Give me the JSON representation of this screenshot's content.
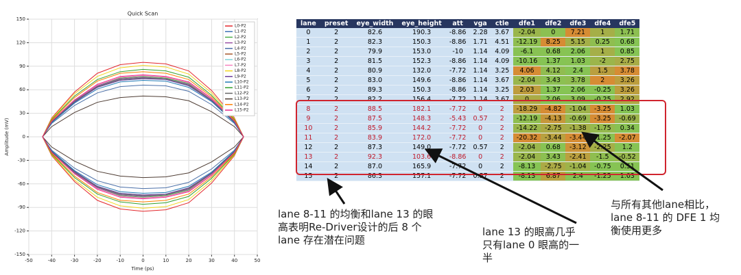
{
  "chart_data": {
    "type": "line",
    "title": "Quick Scan",
    "x_label": "Time (ps)",
    "y_label": "Amplitude (mV)",
    "x": [
      -44,
      -40,
      -30,
      -20,
      -10,
      0,
      10,
      20,
      30,
      40,
      44
    ],
    "xlim": [
      -50,
      50
    ],
    "xticks": [
      -50,
      -40,
      -30,
      -20,
      -10,
      0,
      10,
      20,
      30,
      40,
      50
    ],
    "ylim": [
      -150,
      150
    ],
    "yticks": [
      -150,
      -120,
      -90,
      -60,
      -30,
      0,
      30,
      60,
      90,
      120,
      150
    ],
    "grid": true,
    "legend": "upper right",
    "series": [
      {
        "name": "L0-P2",
        "color": "#e3262b",
        "values": [
          0,
          24,
          57,
          81,
          92,
          95,
          93,
          84,
          59,
          24,
          0
        ],
        "lower": [
          0,
          -24,
          -57,
          -81,
          -92,
          -95,
          -93,
          -84,
          -59,
          -24,
          0
        ]
      },
      {
        "name": "L1-P2",
        "color": "#3a6fb5",
        "values": [
          0,
          19,
          45,
          64,
          73,
          75,
          74,
          66,
          47,
          19,
          0
        ],
        "lower": [
          0,
          -19,
          -45,
          -64,
          -73,
          -75,
          -74,
          -66,
          -47,
          -19,
          0
        ]
      },
      {
        "name": "L2-P2",
        "color": "#4daf4a",
        "values": [
          0,
          19,
          46,
          65,
          75,
          77,
          75,
          68,
          48,
          19,
          0
        ],
        "lower": [
          0,
          -19,
          -46,
          -65,
          -75,
          -77,
          -75,
          -68,
          -48,
          -19,
          0
        ]
      },
      {
        "name": "L3-P2",
        "color": "#984ea3",
        "values": [
          0,
          19,
          46,
          65,
          74,
          76,
          74,
          67,
          47,
          19,
          0
        ],
        "lower": [
          0,
          -19,
          -46,
          -65,
          -74,
          -76,
          -74,
          -67,
          -47,
          -19,
          0
        ]
      },
      {
        "name": "L4-P2",
        "color": "#4a6fa8",
        "values": [
          0,
          17,
          40,
          56,
          64,
          66,
          65,
          58,
          41,
          17,
          0
        ],
        "lower": [
          0,
          -17,
          -40,
          -56,
          -64,
          -66,
          -65,
          -58,
          -41,
          -17,
          0
        ]
      },
      {
        "name": "L5-P2",
        "color": "#a65628",
        "values": [
          0,
          19,
          45,
          64,
          73,
          75,
          74,
          66,
          47,
          19,
          0
        ],
        "lower": [
          0,
          -19,
          -45,
          -64,
          -73,
          -75,
          -74,
          -66,
          -47,
          -19,
          0
        ]
      },
      {
        "name": "L6-P2",
        "color": "#7fd3d8",
        "values": [
          0,
          19,
          45,
          64,
          73,
          75,
          74,
          66,
          47,
          19,
          0
        ],
        "lower": [
          0,
          -19,
          -45,
          -64,
          -73,
          -75,
          -74,
          -66,
          -47,
          -19,
          0
        ]
      },
      {
        "name": "L7-P2",
        "color": "#f781bf",
        "values": [
          0,
          20,
          47,
          66,
          76,
          78,
          76,
          69,
          48,
          20,
          0
        ],
        "lower": [
          0,
          -20,
          -47,
          -66,
          -76,
          -78,
          -76,
          -69,
          -48,
          -20,
          0
        ]
      },
      {
        "name": "L8-P2",
        "color": "#f2d61d",
        "values": [
          0,
          23,
          55,
          77,
          88,
          91,
          89,
          80,
          56,
          23,
          0
        ],
        "lower": [
          0,
          -23,
          -55,
          -77,
          -88,
          -91,
          -89,
          -80,
          -56,
          -23,
          0
        ]
      },
      {
        "name": "L9-P2",
        "color": "#6a3d9a",
        "values": [
          0,
          19,
          44,
          63,
          72,
          74,
          73,
          65,
          46,
          19,
          0
        ],
        "lower": [
          0,
          -19,
          -44,
          -63,
          -72,
          -74,
          -73,
          -65,
          -46,
          -19,
          0
        ]
      },
      {
        "name": "L10-P2",
        "color": "#1f78b4",
        "values": [
          0,
          18,
          43,
          61,
          70,
          72,
          71,
          63,
          45,
          18,
          0
        ],
        "lower": [
          0,
          -18,
          -43,
          -61,
          -70,
          -72,
          -71,
          -63,
          -45,
          -18,
          0
        ]
      },
      {
        "name": "L11-P2",
        "color": "#33a02c",
        "values": [
          0,
          22,
          52,
          73,
          83,
          86,
          84,
          76,
          53,
          22,
          0
        ],
        "lower": [
          0,
          -22,
          -52,
          -73,
          -83,
          -86,
          -84,
          -76,
          -53,
          -22,
          0
        ]
      },
      {
        "name": "L12-P2",
        "color": "#666666",
        "values": [
          0,
          19,
          45,
          64,
          73,
          75,
          74,
          66,
          47,
          19,
          0
        ],
        "lower": [
          0,
          -19,
          -45,
          -64,
          -73,
          -75,
          -74,
          -66,
          -47,
          -19,
          0
        ]
      },
      {
        "name": "L13-P2",
        "color": "#4d3b32",
        "values": [
          0,
          13,
          31,
          44,
          50,
          52,
          51,
          46,
          32,
          13,
          0
        ],
        "lower": [
          0,
          -13,
          -31,
          -44,
          -50,
          -52,
          -51,
          -46,
          -32,
          -13,
          0
        ]
      },
      {
        "name": "L14-P2",
        "color": "#ff7f00",
        "values": [
          0,
          21,
          50,
          71,
          81,
          83,
          81,
          73,
          51,
          21,
          0
        ],
        "lower": [
          0,
          -21,
          -50,
          -71,
          -81,
          -83,
          -81,
          -73,
          -51,
          -21,
          0
        ]
      },
      {
        "name": "L15-P2",
        "color": "#e7298a",
        "values": [
          0,
          20,
          47,
          67,
          77,
          79,
          77,
          70,
          49,
          20,
          0
        ],
        "lower": [
          0,
          -20,
          -47,
          -67,
          -77,
          -79,
          -77,
          -70,
          -49,
          -20,
          0
        ]
      }
    ]
  },
  "table": {
    "header": [
      "lane",
      "preset",
      "eye_width",
      "eye_height",
      "att",
      "vga",
      "ctle",
      "dfe1",
      "dfe2",
      "dfe3",
      "dfe4",
      "dfe5"
    ],
    "heat_columns": [
      7,
      8,
      9,
      10,
      11
    ],
    "highlight_rows": [
      8,
      9,
      10,
      11,
      13
    ],
    "rows": [
      [
        "0",
        "2",
        "82.6",
        "190.3",
        "-8.86",
        "2.28",
        "3.67",
        "-2.04",
        "0",
        "7.21",
        "1",
        "1.71"
      ],
      [
        "1",
        "2",
        "82.3",
        "150.3",
        "-8.86",
        "1.71",
        "4.51",
        "-12.19",
        "8.25",
        "5.15",
        "0.25",
        "0.68"
      ],
      [
        "2",
        "2",
        "79.9",
        "153.0",
        "-10",
        "1.14",
        "4.09",
        "-6.1",
        "0.68",
        "2.06",
        "1",
        "0.85"
      ],
      [
        "3",
        "2",
        "81.5",
        "152.3",
        "-8.86",
        "1.14",
        "4.09",
        "-10.16",
        "1.37",
        "1.03",
        "-2",
        "2.75"
      ],
      [
        "4",
        "2",
        "80.9",
        "132.0",
        "-7.72",
        "1.14",
        "3.25",
        "4.06",
        "4.12",
        "2.4",
        "1.5",
        "3.78"
      ],
      [
        "5",
        "2",
        "83.0",
        "149.6",
        "-8.86",
        "1.14",
        "3.67",
        "-2.04",
        "3.43",
        "3.78",
        "2",
        "3.26"
      ],
      [
        "6",
        "2",
        "89.3",
        "150.3",
        "-8.86",
        "1.14",
        "3.25",
        "2.03",
        "1.37",
        "2.06",
        "-0.25",
        "3.26"
      ],
      [
        "7",
        "2",
        "82.2",
        "156.4",
        "-7.72",
        "1.14",
        "3.67",
        "0",
        "2.06",
        "3.09",
        "-0.25",
        "2.92"
      ],
      [
        "8",
        "2",
        "88.5",
        "182.1",
        "-7.72",
        "0",
        "2",
        "-18.29",
        "-4.82",
        "-1.04",
        "-3.25",
        "1.03"
      ],
      [
        "9",
        "2",
        "87.5",
        "148.3",
        "-5.43",
        "0.57",
        "2",
        "-12.19",
        "-4.13",
        "-0.69",
        "-3.25",
        "-0.69"
      ],
      [
        "10",
        "2",
        "85.9",
        "144.2",
        "-7.72",
        "0",
        "2",
        "-14.22",
        "-2.75",
        "-1.38",
        "-1.75",
        "0.34"
      ],
      [
        "11",
        "2",
        "83.9",
        "172.0",
        "-7.72",
        "0",
        "2",
        "-20.32",
        "-3.44",
        "-3.44",
        "-1.25",
        "-2.07"
      ],
      [
        "12",
        "2",
        "87.3",
        "149.0",
        "-7.72",
        "0.57",
        "2",
        "-2.04",
        "0.68",
        "-3.12",
        "-2.25",
        "1.2"
      ],
      [
        "13",
        "2",
        "92.3",
        "103.6",
        "-8.86",
        "0",
        "2",
        "-2.04",
        "3.43",
        "-2.41",
        "-1.5",
        "-0.52"
      ],
      [
        "14",
        "2",
        "87.0",
        "165.9",
        "-7.72",
        "0",
        "2",
        "-8.13",
        "-2.75",
        "-1.04",
        "-0.75",
        "0.51"
      ],
      [
        "15",
        "2",
        "86.3",
        "157.1",
        "-7.72",
        "0.57",
        "2",
        "-8.13",
        "6.87",
        "2.4",
        "-1.25",
        "1.03"
      ]
    ]
  },
  "notes": [
    {
      "lines": [
        "lane 8-11 的均衡和lane 13 的眼",
        "高表明Re-Driver设计的后 8 个",
        "lane 存在潜在问题"
      ]
    },
    {
      "lines": [
        "lane 13 的眼高几乎",
        "只有lane 0 眼高的一",
        "半"
      ]
    },
    {
      "lines": [
        "与所有其他lane相比，",
        "lane 8-11 的 DFE 1 均",
        "衡使用更多"
      ]
    }
  ]
}
